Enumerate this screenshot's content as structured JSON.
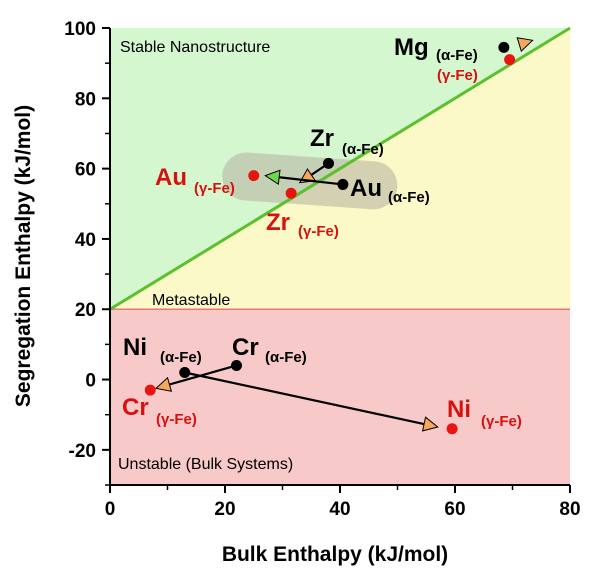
{
  "chart_data": {
    "type": "scatter",
    "title": "",
    "xlabel": "Bulk Enthalpy  (kJ/mol)",
    "ylabel": "Segregation Enthalpy  (kJ/mol)",
    "xlim": [
      0,
      80
    ],
    "ylim": [
      -30,
      100
    ],
    "x_ticks": [
      "0",
      "20",
      "40",
      "60",
      "80"
    ],
    "y_ticks": [
      "-20",
      "0",
      "20",
      "40",
      "60",
      "80",
      "100"
    ],
    "grid": false,
    "regions": {
      "stable": "Stable Nanostructure",
      "metastable": "Metastable",
      "unstable": "Unstable (Bulk Systems)",
      "boundary_line": {
        "x": [
          0,
          80
        ],
        "y": [
          20,
          100
        ]
      },
      "horizontal_boundary_y": 20
    },
    "points": [
      {
        "element": "Mg",
        "phase": "(α-Fe)",
        "x": 68.5,
        "y": 94.5,
        "color": "#000000"
      },
      {
        "element": "",
        "phase": "(γ-Fe)",
        "x": 69.5,
        "y": 91,
        "color": "#e8140f"
      },
      {
        "element": "Zr",
        "phase": "(α-Fe)",
        "x": 38,
        "y": 61.5,
        "color": "#000000"
      },
      {
        "element": "Zr",
        "phase": "(γ-Fe)",
        "x": 31.5,
        "y": 53,
        "color": "#e8140f"
      },
      {
        "element": "Au",
        "phase": "(α-Fe)",
        "x": 40.5,
        "y": 55.5,
        "color": "#000000"
      },
      {
        "element": "Au",
        "phase": "(γ-Fe)",
        "x": 25,
        "y": 58,
        "color": "#e8140f"
      },
      {
        "element": "Ni",
        "phase": "(α-Fe)",
        "x": 13,
        "y": 2,
        "color": "#000000"
      },
      {
        "element": "Ni",
        "phase": "(γ-Fe)",
        "x": 59.5,
        "y": -14,
        "color": "#e8140f"
      },
      {
        "element": "Cr",
        "phase": "(α-Fe)",
        "x": 22,
        "y": 4,
        "color": "#000000"
      },
      {
        "element": "Cr",
        "phase": "(γ-Fe)",
        "x": 7,
        "y": -3,
        "color": "#e8140f"
      }
    ],
    "arrows": [
      {
        "from": [
          71.5,
          95.5
        ],
        "to": [
          73.5,
          96.5
        ],
        "head": "orange"
      },
      {
        "from": [
          38,
          61.5
        ],
        "to": [
          33,
          56
        ],
        "head": "orange"
      },
      {
        "from": [
          40.5,
          55.5
        ],
        "to": [
          27,
          58
        ],
        "head": "green"
      },
      {
        "from": [
          13,
          2
        ],
        "to": [
          57,
          -13.5
        ],
        "head": "orange"
      },
      {
        "from": [
          22,
          4
        ],
        "to": [
          8,
          -2.5
        ],
        "head": "orange"
      }
    ],
    "colors": {
      "stable_fill": "#d4f7d0",
      "metastable_fill": "#fbf9c8",
      "unstable_fill": "#f7c9c9",
      "boundary_line": "#5cc02c",
      "horizontal_line": "#e87878",
      "alpha_point": "#000000",
      "gamma_point": "#e8140f",
      "gamma_label": "#d7120e",
      "arrow_orange": "#f5a85a",
      "arrow_green": "#6fd64a",
      "highlight": "#b5b0a0"
    }
  }
}
